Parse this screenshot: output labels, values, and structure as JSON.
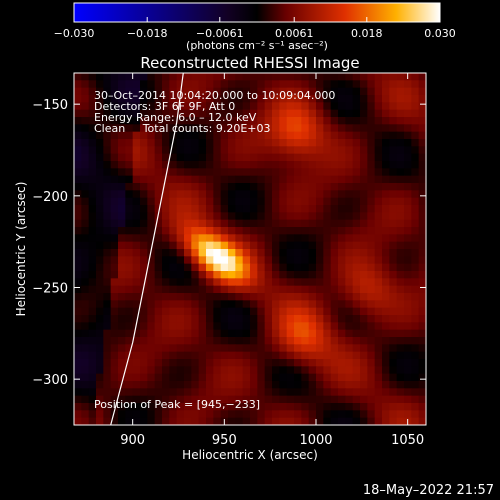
{
  "colorbar": {
    "min": -0.03,
    "max": 0.03,
    "tick_labels": [
      "−0.030",
      "−0.018",
      "−0.0061",
      "0.0061",
      "0.018",
      "0.030"
    ],
    "tick_values": [
      -0.03,
      -0.018,
      -0.0061,
      0.0061,
      0.018,
      0.03
    ],
    "units": "(photons cm⁻² s⁻¹ asec⁻²)",
    "colormap": "blue-black-red-yellow-white"
  },
  "info": {
    "date_line": "30–Oct–2014 10:04:20.000 to 10:09:04.000",
    "detectors_line": "Detectors: 3F 6F 9F, Att 0",
    "energy_line": "Energy Range: 6.0 – 12.0 keV",
    "clean_line": "Clean     Total counts: 9.20E+03",
    "peak_line": "Position of Peak = [945,−233]"
  },
  "footer": {
    "timestamp": "18–May–2022 21:57"
  },
  "chart_data": {
    "type": "heatmap",
    "title": "Reconstructed RHESSI Image",
    "xlabel": "Heliocentric X (arcsec)",
    "ylabel": "Heliocentric Y (arcsec)",
    "xlim": [
      868,
      1060
    ],
    "ylim": [
      -325,
      -133
    ],
    "x_ticks": [
      900,
      950,
      1000,
      1050
    ],
    "y_ticks": [
      -150,
      -200,
      -250,
      -300
    ],
    "x_tick_labels": [
      "900",
      "950",
      "1000",
      "1050"
    ],
    "y_tick_labels": [
      "−150",
      "−200",
      "−250",
      "−300"
    ],
    "peak": {
      "x": 945,
      "y": -233,
      "value": 0.03
    },
    "secondary_sources": [
      {
        "x": 990,
        "y": -165,
        "value": 0.012
      },
      {
        "x": 993,
        "y": -278,
        "value": 0.01
      },
      {
        "x": 1028,
        "y": -252,
        "value": 0.009
      }
    ],
    "limb_curve": [
      {
        "x": 928,
        "y": -130
      },
      {
        "x": 924,
        "y": -160
      },
      {
        "x": 918,
        "y": -190
      },
      {
        "x": 912,
        "y": -220
      },
      {
        "x": 906,
        "y": -250
      },
      {
        "x": 900,
        "y": -280
      },
      {
        "x": 892,
        "y": -310
      },
      {
        "x": 888,
        "y": -325
      }
    ]
  }
}
